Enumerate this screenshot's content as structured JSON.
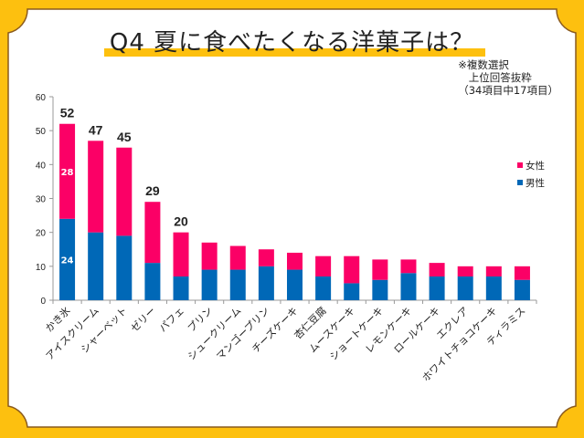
{
  "title": "Q4  夏に食べたくなる洋菓子は？",
  "note": [
    "※複数選択",
    "　上位回答抜粋",
    "（34項目中17項目）"
  ],
  "colors": {
    "female": "#fb0066",
    "male": "#0068b7",
    "frame": "#fdc00f",
    "border": "#8a5a1e"
  },
  "chart_data": {
    "type": "bar",
    "stacked": true,
    "title": "Q4  夏に食べたくなる洋菓子は？",
    "xlabel": "",
    "ylabel": "",
    "ylim": [
      0,
      60
    ],
    "yticks": [
      0,
      10,
      20,
      30,
      40,
      50,
      60
    ],
    "grid": false,
    "legend_position": "right",
    "categories": [
      "かき氷",
      "アイスクリーム",
      "シャーベット",
      "ゼリー",
      "パフェ",
      "プリン",
      "シュークリーム",
      "マンゴープリン",
      "チーズケーキ",
      "杏仁豆腐",
      "ムースケーキ",
      "ショートケーキ",
      "レモンケーキ",
      "ロールケーキ",
      "エクレア",
      "ホワイトチョコケーキ",
      "ティラミス"
    ],
    "series": [
      {
        "name": "男性",
        "color": "#0068b7",
        "values": [
          24,
          20,
          19,
          11,
          7,
          9,
          9,
          10,
          9,
          7,
          5,
          6,
          8,
          7,
          7,
          7,
          6
        ]
      },
      {
        "name": "女性",
        "color": "#fb0066",
        "values": [
          28,
          27,
          26,
          18,
          13,
          8,
          7,
          5,
          5,
          6,
          8,
          6,
          4,
          4,
          3,
          3,
          4
        ]
      }
    ],
    "totals": [
      52,
      47,
      45,
      29,
      20,
      17,
      16,
      15,
      14,
      13,
      13,
      12,
      12,
      11,
      10,
      10,
      10
    ],
    "total_labels_shown": [
      "52",
      "47",
      "45",
      "29",
      "20"
    ],
    "segment_labels_shown": {
      "female_first": "28",
      "male_first": "24"
    },
    "legend": [
      "女性",
      "男性"
    ]
  }
}
